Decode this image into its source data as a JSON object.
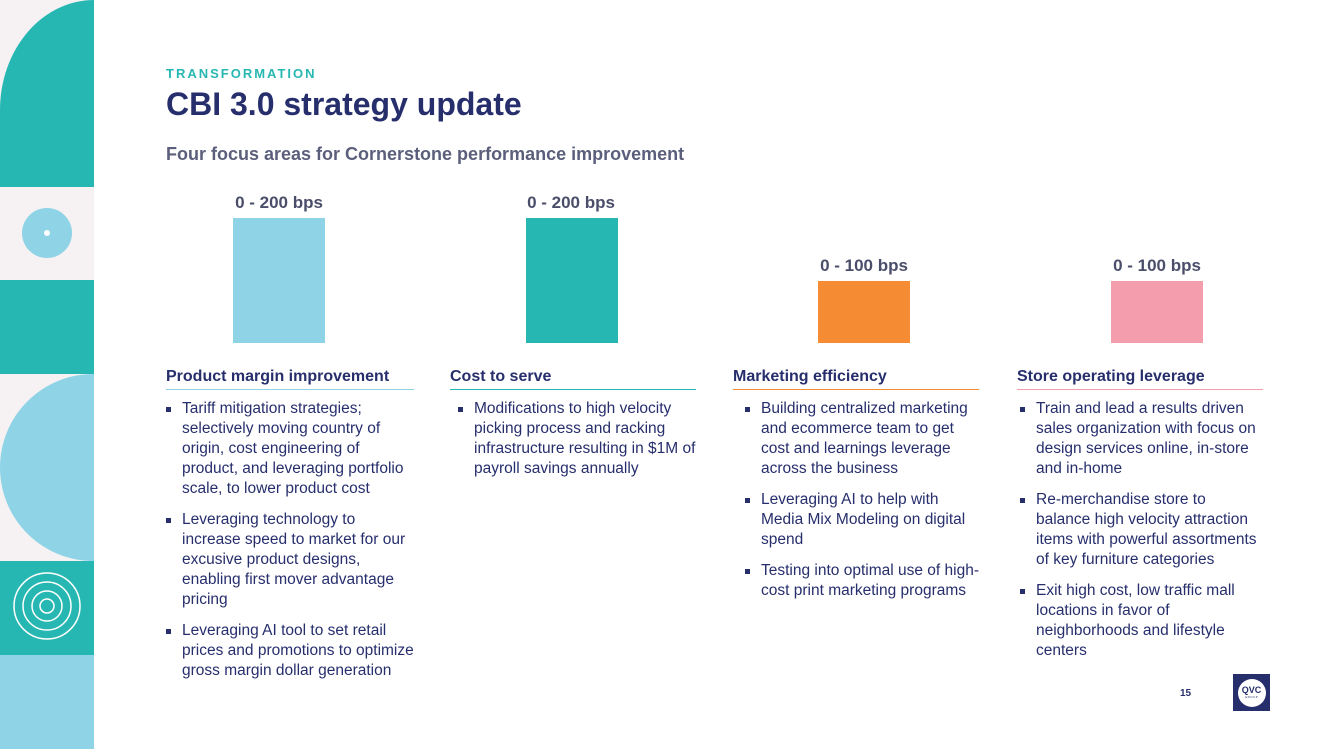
{
  "header": {
    "kicker": "TRANSFORMATION",
    "title": "CBI 3.0 strategy update",
    "subtitle": "Four focus areas for Cornerstone performance improvement"
  },
  "colors": {
    "teal": "#27b7b2",
    "light_blue": "#8ed3e6",
    "orange": "#f58b32",
    "pink": "#f49dac",
    "navy": "#262e6c"
  },
  "columns": [
    {
      "range_label": "0 - 200 bps",
      "max_bps": 200,
      "heading": "Product margin improvement",
      "bullets": [
        "Tariff mitigation strategies; selectively moving country of origin, cost engineering of product, and leveraging portfolio scale, to lower product cost",
        "Leveraging technology to increase speed to market for our excusive product designs, enabling first mover advantage pricing",
        "Leveraging AI tool to set retail prices and promotions to optimize gross margin dollar generation"
      ]
    },
    {
      "range_label": "0 - 200 bps",
      "max_bps": 200,
      "heading": "Cost to serve",
      "bullets": [
        "Modifications to high velocity picking process and racking infrastructure resulting in $1M of payroll savings annually"
      ]
    },
    {
      "range_label": "0 - 100 bps",
      "max_bps": 100,
      "heading": "Marketing efficiency",
      "bullets": [
        "Building centralized marketing and ecommerce team to get cost and learnings leverage across the business",
        "Leveraging AI to help with Media Mix Modeling on digital spend",
        "Testing into optimal use of high-cost print marketing programs"
      ]
    },
    {
      "range_label": "0 - 100 bps",
      "max_bps": 100,
      "heading": "Store operating leverage",
      "bullets": [
        "Train and lead a results driven sales organization with focus on design services online, in-store and in-home",
        "Re-merchandise store to balance high velocity attraction items with powerful assortments of key furniture categories",
        "Exit high cost, low traffic mall locations in favor of neighborhoods and lifestyle centers"
      ]
    }
  ],
  "footer": {
    "page_number": "15",
    "logo_text": "QVC",
    "logo_sub": "GROUP"
  }
}
